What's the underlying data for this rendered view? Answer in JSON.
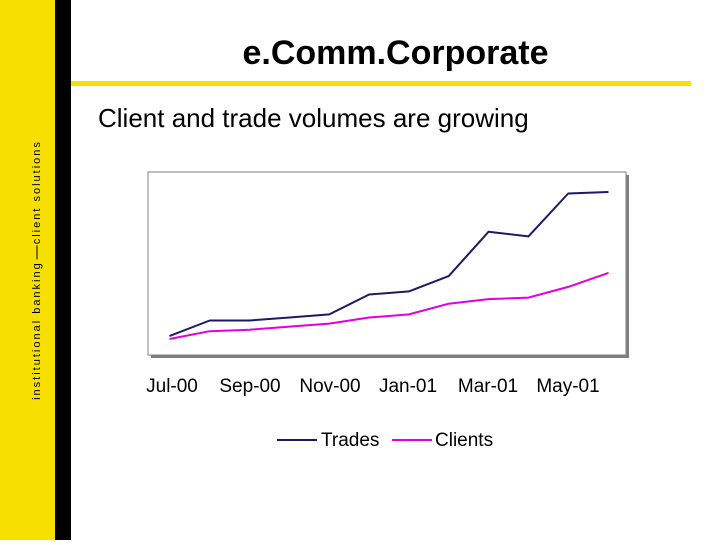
{
  "sidebar": {
    "left_text": "institutional banking",
    "right_text": "client solutions"
  },
  "slide": {
    "title": "e.Comm.Corporate",
    "subtitle": "Client and trade volumes are growing"
  },
  "colors": {
    "accent_yellow": "#f7e000",
    "trades": "#1a1a66",
    "clients": "#e000e0"
  },
  "chart_data": {
    "type": "line",
    "title": "",
    "xlabel": "",
    "ylabel": "",
    "ylim": [
      0,
      100
    ],
    "y_ticks_shown": false,
    "grid": false,
    "legend_position": "bottom",
    "tick_labels": [
      "Jul-00",
      "Sep-00",
      "Nov-00",
      "Jan-01",
      "Mar-01",
      "May-01"
    ],
    "x": [
      "Jul-00",
      "Aug-00",
      "Sep-00",
      "Oct-00",
      "Nov-00",
      "Dec-00",
      "Jan-01",
      "Feb-01",
      "Mar-01",
      "Apr-01",
      "May-01",
      "Jun-01"
    ],
    "series": [
      {
        "name": "Trades",
        "color": "#1a1a66",
        "values": [
          6,
          16,
          16,
          18,
          20,
          33,
          35,
          45,
          74,
          71,
          99,
          100
        ]
      },
      {
        "name": "Clients",
        "color": "#e000e0",
        "values": [
          4,
          9,
          10,
          12,
          14,
          18,
          20,
          27,
          30,
          31,
          38,
          47
        ]
      }
    ]
  }
}
